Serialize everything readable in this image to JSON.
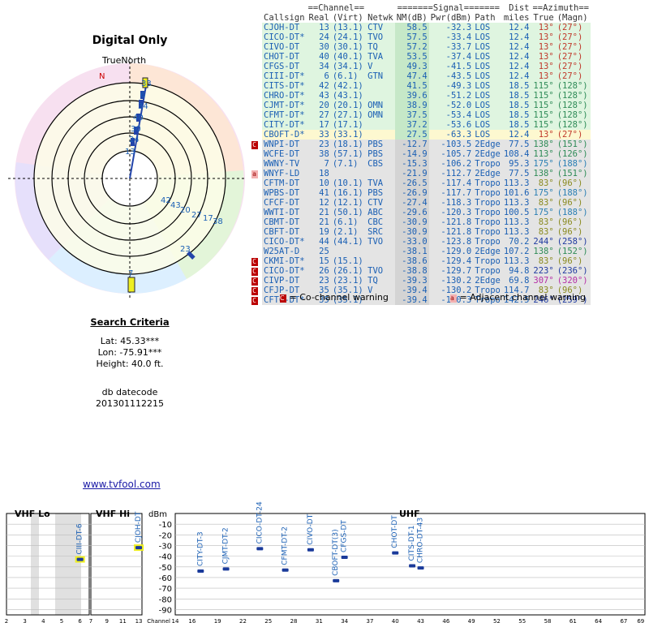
{
  "radar": {
    "title": "Digital Only",
    "north_label": "TrueNorth",
    "magnetic_label": "N",
    "dist_labels": [
      "33",
      "6",
      "34",
      "40",
      "30",
      "24",
      "13"
    ],
    "east_labels": [
      "42",
      "43",
      "20",
      "27",
      "17",
      "38",
      "23",
      "7"
    ]
  },
  "criteria": {
    "heading": "Search Criteria",
    "lat": "Lat: 45.33***",
    "lon": "Lon: -75.91***",
    "height": "Height: 40.0 ft."
  },
  "datecode": {
    "label": "db datecode",
    "value": "201301112215"
  },
  "link": "www.tvfool.com",
  "table": {
    "headers_top": [
      "==Channel==",
      "=======Signal=======",
      "Dist",
      "==Azimuth=="
    ],
    "headers": [
      "Callsign",
      "Real",
      "(Virt)",
      "Netwk",
      "NM(dB)",
      "Pwr(dBm)",
      "Path",
      "miles",
      "True",
      "(Magn)"
    ],
    "rows": [
      {
        "warn": "",
        "call": "CJOH-DT",
        "real": "13",
        "virt": "(13.1)",
        "net": "CTV",
        "nm": "58.5",
        "pwr": "-32.3",
        "path": "LOS",
        "dist": "12.4",
        "tru": "13°",
        "mag": "(27°)",
        "bg": "#dff5e0",
        "color": "#1a5fb4",
        "azc": "#c0392b"
      },
      {
        "warn": "",
        "call": "CICO-DT*",
        "real": "24",
        "virt": "(24.1)",
        "net": "TVO",
        "nm": "57.5",
        "pwr": "-33.4",
        "path": "LOS",
        "dist": "12.4",
        "tru": "13°",
        "mag": "(27°)",
        "bg": "#dff5e0",
        "color": "#1a5fb4",
        "azc": "#c0392b"
      },
      {
        "warn": "",
        "call": "CIVO-DT",
        "real": "30",
        "virt": "(30.1)",
        "net": "TQ",
        "nm": "57.2",
        "pwr": "-33.7",
        "path": "LOS",
        "dist": "12.4",
        "tru": "13°",
        "mag": "(27°)",
        "bg": "#dff5e0",
        "color": "#1a5fb4",
        "azc": "#c0392b"
      },
      {
        "warn": "",
        "call": "CHOT-DT",
        "real": "40",
        "virt": "(40.1)",
        "net": "TVA",
        "nm": "53.5",
        "pwr": "-37.4",
        "path": "LOS",
        "dist": "12.4",
        "tru": "13°",
        "mag": "(27°)",
        "bg": "#dff5e0",
        "color": "#1a5fb4",
        "azc": "#c0392b"
      },
      {
        "warn": "",
        "call": "CFGS-DT",
        "real": "34",
        "virt": "(34.1)",
        "net": "V",
        "nm": "49.3",
        "pwr": "-41.5",
        "path": "LOS",
        "dist": "12.4",
        "tru": "13°",
        "mag": "(27°)",
        "bg": "#dff5e0",
        "color": "#1a5fb4",
        "azc": "#c0392b"
      },
      {
        "warn": "",
        "call": "CIII-DT*",
        "real": "6",
        "virt": "(6.1)",
        "net": "GTN",
        "nm": "47.4",
        "pwr": "-43.5",
        "path": "LOS",
        "dist": "12.4",
        "tru": "13°",
        "mag": "(27°)",
        "bg": "#dff5e0",
        "color": "#1a5fb4",
        "azc": "#c0392b"
      },
      {
        "warn": "",
        "call": "CITS-DT*",
        "real": "42",
        "virt": "(42.1)",
        "net": "",
        "nm": "41.5",
        "pwr": "-49.3",
        "path": "LOS",
        "dist": "18.5",
        "tru": "115°",
        "mag": "(128°)",
        "bg": "#dff5e0",
        "color": "#1a5fb4",
        "azc": "#2e8b57"
      },
      {
        "warn": "",
        "call": "CHRO-DT*",
        "real": "43",
        "virt": "(43.1)",
        "net": "",
        "nm": "39.6",
        "pwr": "-51.2",
        "path": "LOS",
        "dist": "18.5",
        "tru": "115°",
        "mag": "(128°)",
        "bg": "#dff5e0",
        "color": "#1a5fb4",
        "azc": "#2e8b57"
      },
      {
        "warn": "",
        "call": "CJMT-DT*",
        "real": "20",
        "virt": "(20.1)",
        "net": "OMN",
        "nm": "38.9",
        "pwr": "-52.0",
        "path": "LOS",
        "dist": "18.5",
        "tru": "115°",
        "mag": "(128°)",
        "bg": "#dff5e0",
        "color": "#1a5fb4",
        "azc": "#2e8b57"
      },
      {
        "warn": "",
        "call": "CFMT-DT*",
        "real": "27",
        "virt": "(27.1)",
        "net": "OMN",
        "nm": "37.5",
        "pwr": "-53.4",
        "path": "LOS",
        "dist": "18.5",
        "tru": "115°",
        "mag": "(128°)",
        "bg": "#dff5e0",
        "color": "#1a5fb4",
        "azc": "#2e8b57"
      },
      {
        "warn": "",
        "call": "CITY-DT*",
        "real": "17",
        "virt": "(17.1)",
        "net": "",
        "nm": "37.2",
        "pwr": "-53.6",
        "path": "LOS",
        "dist": "18.5",
        "tru": "115°",
        "mag": "(128°)",
        "bg": "#dff5e0",
        "color": "#1a5fb4",
        "azc": "#2e8b57"
      },
      {
        "warn": "",
        "call": "CBOFT-D*",
        "real": "33",
        "virt": "(33.1)",
        "net": "",
        "nm": "27.5",
        "pwr": "-63.3",
        "path": "LOS",
        "dist": "12.4",
        "tru": "13°",
        "mag": "(27°)",
        "bg": "#fdf8d0",
        "color": "#1a5fb4",
        "azc": "#c0392b"
      },
      {
        "warn": "C",
        "call": "WNPI-DT",
        "real": "23",
        "virt": "(18.1)",
        "net": "PBS",
        "nm": "-12.7",
        "pwr": "-103.5",
        "path": "2Edge",
        "dist": "77.5",
        "tru": "138°",
        "mag": "(151°)",
        "bg": "#e4e4e4",
        "color": "#1a5fb4",
        "azc": "#2e8b57"
      },
      {
        "warn": "",
        "call": "WCFE-DT",
        "real": "38",
        "virt": "(57.1)",
        "net": "PBS",
        "nm": "-14.9",
        "pwr": "-105.7",
        "path": "2Edge",
        "dist": "108.4",
        "tru": "113°",
        "mag": "(126°)",
        "bg": "#e4e4e4",
        "color": "#1a5fb4",
        "azc": "#2e8b57"
      },
      {
        "warn": "",
        "call": "WWNY-TV",
        "real": "7",
        "virt": "(7.1)",
        "net": "CBS",
        "nm": "-15.3",
        "pwr": "-106.2",
        "path": "Tropo",
        "dist": "95.3",
        "tru": "175°",
        "mag": "(188°)",
        "bg": "#e4e4e4",
        "color": "#1a5fb4",
        "azc": "#2a7fb4"
      },
      {
        "warn": "a",
        "call": "WNYF-LD",
        "real": "18",
        "virt": "",
        "net": "",
        "nm": "-21.9",
        "pwr": "-112.7",
        "path": "2Edge",
        "dist": "77.5",
        "tru": "138°",
        "mag": "(151°)",
        "bg": "#e4e4e4",
        "color": "#1a5fb4",
        "azc": "#2e8b57"
      },
      {
        "warn": "",
        "call": "CFTM-DT",
        "real": "10",
        "virt": "(10.1)",
        "net": "TVA",
        "nm": "-26.5",
        "pwr": "-117.4",
        "path": "Tropo",
        "dist": "113.3",
        "tru": "83°",
        "mag": "(96°)",
        "bg": "#e4e4e4",
        "color": "#1a5fb4",
        "azc": "#8a8a20"
      },
      {
        "warn": "",
        "call": "WPBS-DT",
        "real": "41",
        "virt": "(16.1)",
        "net": "PBS",
        "nm": "-26.9",
        "pwr": "-117.7",
        "path": "Tropo",
        "dist": "101.6",
        "tru": "175°",
        "mag": "(188°)",
        "bg": "#e4e4e4",
        "color": "#1a5fb4",
        "azc": "#2a7fb4"
      },
      {
        "warn": "",
        "call": "CFCF-DT",
        "real": "12",
        "virt": "(12.1)",
        "net": "CTV",
        "nm": "-27.4",
        "pwr": "-118.3",
        "path": "Tropo",
        "dist": "113.3",
        "tru": "83°",
        "mag": "(96°)",
        "bg": "#e4e4e4",
        "color": "#1a5fb4",
        "azc": "#8a8a20"
      },
      {
        "warn": "",
        "call": "WWTI-DT",
        "real": "21",
        "virt": "(50.1)",
        "net": "ABC",
        "nm": "-29.6",
        "pwr": "-120.3",
        "path": "Tropo",
        "dist": "100.5",
        "tru": "175°",
        "mag": "(188°)",
        "bg": "#e4e4e4",
        "color": "#1a5fb4",
        "azc": "#2a7fb4"
      },
      {
        "warn": "",
        "call": "CBMT-DT",
        "real": "21",
        "virt": "(6.1)",
        "net": "CBC",
        "nm": "-30.9",
        "pwr": "-121.8",
        "path": "Tropo",
        "dist": "113.3",
        "tru": "83°",
        "mag": "(96°)",
        "bg": "#e4e4e4",
        "color": "#1a5fb4",
        "azc": "#8a8a20"
      },
      {
        "warn": "",
        "call": "CBFT-DT",
        "real": "19",
        "virt": "(2.1)",
        "net": "SRC",
        "nm": "-30.9",
        "pwr": "-121.8",
        "path": "Tropo",
        "dist": "113.3",
        "tru": "83°",
        "mag": "(96°)",
        "bg": "#e4e4e4",
        "color": "#1a5fb4",
        "azc": "#8a8a20"
      },
      {
        "warn": "",
        "call": "CICO-DT*",
        "real": "44",
        "virt": "(44.1)",
        "net": "TVO",
        "nm": "-33.0",
        "pwr": "-123.8",
        "path": "Tropo",
        "dist": "70.2",
        "tru": "244°",
        "mag": "(258°)",
        "bg": "#e4e4e4",
        "color": "#1a5fb4",
        "azc": "#1f3aa0"
      },
      {
        "warn": "",
        "call": "W25AT-D",
        "real": "25",
        "virt": "",
        "net": "",
        "nm": "-38.1",
        "pwr": "-129.0",
        "path": "2Edge",
        "dist": "107.2",
        "tru": "138°",
        "mag": "(152°)",
        "bg": "#e4e4e4",
        "color": "#1a5fb4",
        "azc": "#2e8b57"
      },
      {
        "warn": "C",
        "call": "CKMI-DT*",
        "real": "15",
        "virt": "(15.1)",
        "net": "",
        "nm": "-38.6",
        "pwr": "-129.4",
        "path": "Tropo",
        "dist": "113.3",
        "tru": "83°",
        "mag": "(96°)",
        "bg": "#e4e4e4",
        "color": "#1a5fb4",
        "azc": "#8a8a20"
      },
      {
        "warn": "C",
        "call": "CICO-DT*",
        "real": "26",
        "virt": "(26.1)",
        "net": "TVO",
        "nm": "-38.8",
        "pwr": "-129.7",
        "path": "Tropo",
        "dist": "94.8",
        "tru": "223°",
        "mag": "(236°)",
        "bg": "#e4e4e4",
        "color": "#1a5fb4",
        "azc": "#1f3aa0"
      },
      {
        "warn": "C",
        "call": "CIVP-DT",
        "real": "23",
        "virt": "(23.1)",
        "net": "TQ",
        "nm": "-39.3",
        "pwr": "-130.2",
        "path": "2Edge",
        "dist": "69.8",
        "tru": "307°",
        "mag": "(320°)",
        "bg": "#e4e4e4",
        "color": "#1a5fb4",
        "azc": "#b52fa6"
      },
      {
        "warn": "C",
        "call": "CFJP-DT",
        "real": "35",
        "virt": "(35.1)",
        "net": "V",
        "nm": "-39.4",
        "pwr": "-130.2",
        "path": "Tropo",
        "dist": "114.7",
        "tru": "83°",
        "mag": "(96°)",
        "bg": "#e4e4e4",
        "color": "#1a5fb4",
        "azc": "#8a8a20"
      },
      {
        "warn": "C",
        "call": "CFTO-DT*",
        "real": "35",
        "virt": "(35.1)",
        "net": "",
        "nm": "-39.4",
        "pwr": "-130.3",
        "path": "Tropo",
        "dist": "142.5",
        "tru": "246°",
        "mag": "(259°)",
        "bg": "#e4e4e4",
        "color": "#1a5fb4",
        "azc": "#1f3aa0"
      }
    ]
  },
  "legend": {
    "co": "= Co-channel warning",
    "adj": "= Adjacent channel warning"
  },
  "spectrum": {
    "vhflo_label": "VHF Lo",
    "vhfhi_label": "VHF Hi",
    "uhf_label": "UHF",
    "dbm_label": "dBm",
    "channel_label": "Channel",
    "db_ticks": [
      "-10",
      "-20",
      "-30",
      "-40",
      "-50",
      "-60",
      "-70",
      "-80",
      "-90"
    ],
    "lo_channels": [
      "2",
      "3",
      "4",
      "5",
      "6"
    ],
    "hi_channels": [
      "7",
      "9",
      "11",
      "13"
    ],
    "uhf_channels": [
      "14",
      "16",
      "19",
      "22",
      "25",
      "28",
      "31",
      "34",
      "37",
      "40",
      "43",
      "46",
      "49",
      "52",
      "55",
      "58",
      "61",
      "64",
      "67",
      "69"
    ],
    "stations": [
      {
        "name": "CIII-DT-6",
        "band": "lo",
        "ch": 6,
        "dbm": -43
      },
      {
        "name": "CJOH-DT",
        "band": "hi",
        "ch": 13,
        "dbm": -32
      },
      {
        "name": "CITY-DT-3",
        "band": "uhf",
        "ch": 17,
        "dbm": -54
      },
      {
        "name": "CJMT-DT-2",
        "band": "uhf",
        "ch": 20,
        "dbm": -52
      },
      {
        "name": "CICO-DT-24",
        "band": "uhf",
        "ch": 24,
        "dbm": -33
      },
      {
        "name": "CFMT-DT-2",
        "band": "uhf",
        "ch": 27,
        "dbm": -53
      },
      {
        "name": "CIVO-DT",
        "band": "uhf",
        "ch": 30,
        "dbm": -34
      },
      {
        "name": "CBOFT-DT(3)",
        "band": "uhf",
        "ch": 33,
        "dbm": -63
      },
      {
        "name": "CFGS-DT",
        "band": "uhf",
        "ch": 34,
        "dbm": -41
      },
      {
        "name": "CHOT-DT",
        "band": "uhf",
        "ch": 40,
        "dbm": -37
      },
      {
        "name": "CITS-DT-1",
        "band": "uhf",
        "ch": 42,
        "dbm": -49
      },
      {
        "name": "CHRO-DT-43",
        "band": "uhf",
        "ch": 43,
        "dbm": -51
      }
    ]
  },
  "colors": {
    "accent": "#1a5fb4",
    "cochannel": "#b00000",
    "adjacent": "#f3b0b0"
  }
}
